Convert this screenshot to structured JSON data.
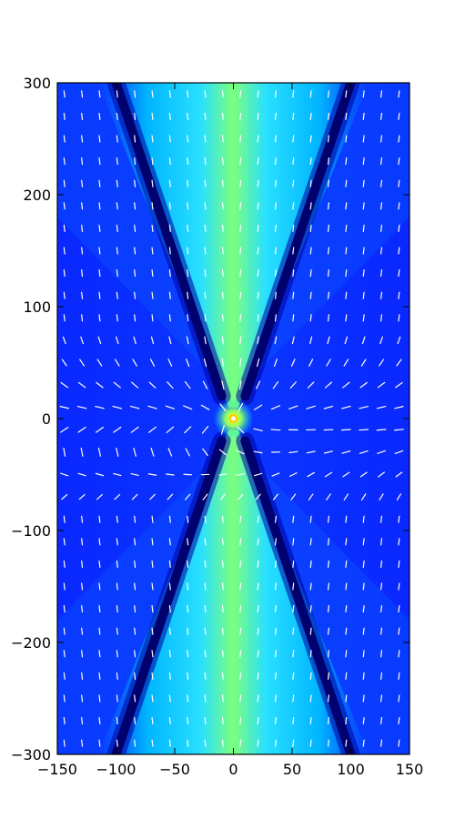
{
  "chart_data": {
    "type": "heatmap",
    "title": "",
    "xlabel": "",
    "ylabel": "",
    "xlim": [
      -150,
      150
    ],
    "ylim": [
      -300,
      300
    ],
    "x_ticks": [
      {
        "value": -150,
        "label": "−150"
      },
      {
        "value": -100,
        "label": "−100"
      },
      {
        "value": -50,
        "label": "−50"
      },
      {
        "value": 0,
        "label": "0"
      },
      {
        "value": 50,
        "label": "50"
      },
      {
        "value": 100,
        "label": "100"
      },
      {
        "value": 150,
        "label": "150"
      }
    ],
    "y_ticks": [
      {
        "value": 300,
        "label": "300"
      },
      {
        "value": 200,
        "label": "200"
      },
      {
        "value": 100,
        "label": "100"
      },
      {
        "value": 0,
        "label": "0"
      },
      {
        "value": -100,
        "label": "−100"
      },
      {
        "value": -200,
        "label": "−200"
      },
      {
        "value": -300,
        "label": "−300"
      }
    ],
    "colormap": "jet",
    "nodal_lines": {
      "description": "dark blue X-shaped low-intensity bands",
      "points_upper": [
        [
          -100,
          300
        ],
        [
          -10,
          20
        ],
        [
          10,
          20
        ],
        [
          100,
          300
        ]
      ],
      "points_lower": [
        [
          -100,
          -300
        ],
        [
          -10,
          -20
        ],
        [
          10,
          -20
        ],
        [
          100,
          -300
        ]
      ]
    },
    "source_point": {
      "x": 0,
      "y": 0
    },
    "quiver": {
      "color": "#ffffff",
      "grid_step_x": 15,
      "grid_step_y": 20
    },
    "grid": false
  }
}
